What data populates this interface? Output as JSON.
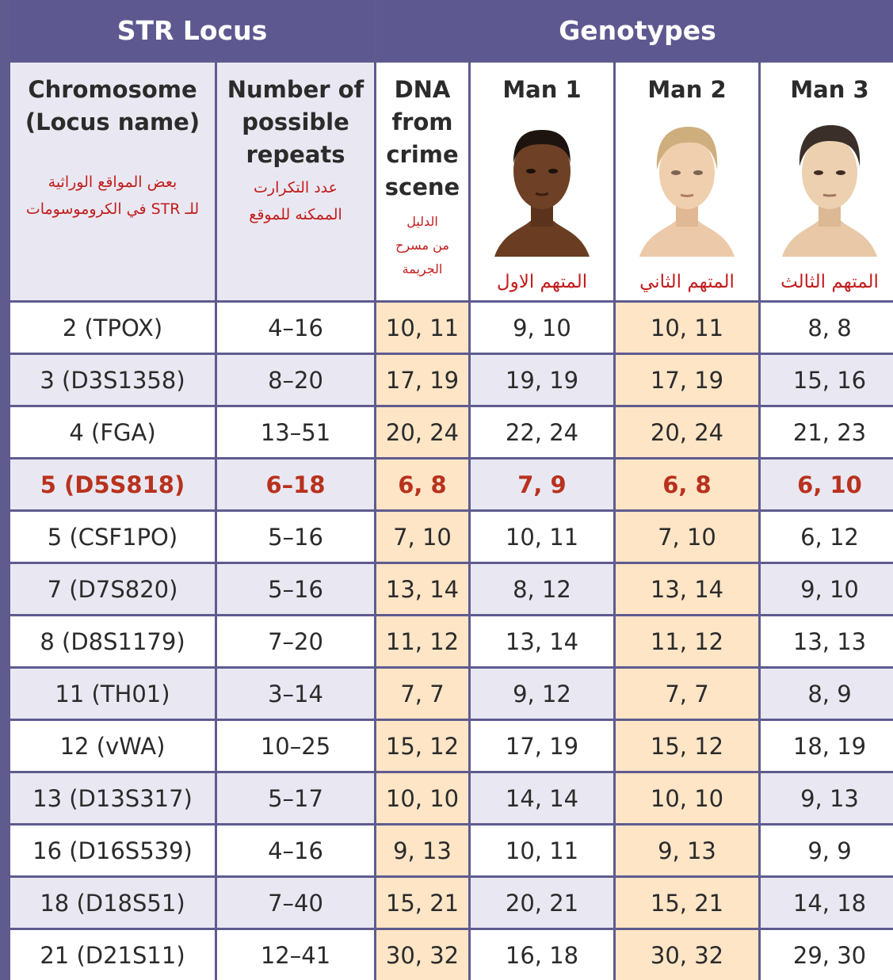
{
  "header": {
    "str_locus": "STR Locus",
    "genotypes": "Genotypes"
  },
  "columns": {
    "chromosome": {
      "title": "Chromosome\n(Locus name)",
      "arabic": "بعض المواقع الوراثية\nللـ STR في الكروموسومات"
    },
    "repeats": {
      "title": "Number of\npossible\nrepeats",
      "arabic": "عدد التكرارت\nالممكنه للموقع"
    },
    "crime_scene": {
      "title": "DNA\nfrom\ncrime\nscene",
      "arabic": "الدليل\nمن مسرح\nالجريمة"
    },
    "man1": {
      "title": "Man 1",
      "arabic": "المتهم الاول"
    },
    "man2": {
      "title": "Man 2",
      "arabic": "المتهم الثاني"
    },
    "man3": {
      "title": "Man 3",
      "arabic": "المتهم الثالث"
    }
  },
  "rows": [
    {
      "locus": "2 (TPOX)",
      "repeats": "4–16",
      "scene": "10, 11",
      "man1": "9, 10",
      "man2": "10, 11",
      "man3": "8, 8"
    },
    {
      "locus": "3 (D3S1358)",
      "repeats": "8–20",
      "scene": "17, 19",
      "man1": "19, 19",
      "man2": "17, 19",
      "man3": "15, 16"
    },
    {
      "locus": "4 (FGA)",
      "repeats": "13–51",
      "scene": "20, 24",
      "man1": "22, 24",
      "man2": "20, 24",
      "man3": "21, 23"
    },
    {
      "locus": "5 (D5S818)",
      "repeats": "6–18",
      "scene": "6, 8",
      "man1": "7, 9",
      "man2": "6, 8",
      "man3": "6, 10"
    },
    {
      "locus": "5 (CSF1PO)",
      "repeats": "5–16",
      "scene": "7, 10",
      "man1": "10, 11",
      "man2": "7, 10",
      "man3": "6, 12"
    },
    {
      "locus": "7 (D7S820)",
      "repeats": "5–16",
      "scene": "13, 14",
      "man1": "8, 12",
      "man2": "13, 14",
      "man3": "9, 10"
    },
    {
      "locus": "8 (D8S1179)",
      "repeats": "7–20",
      "scene": "11, 12",
      "man1": "13, 14",
      "man2": "11, 12",
      "man3": "13, 13"
    },
    {
      "locus": "11 (TH01)",
      "repeats": "3–14",
      "scene": "7, 7",
      "man1": "9, 12",
      "man2": "7, 7",
      "man3": "8, 9"
    },
    {
      "locus": "12 (vWA)",
      "repeats": "10–25",
      "scene": "15, 12",
      "man1": "17, 19",
      "man2": "15, 12",
      "man3": "18, 19"
    },
    {
      "locus": "13 (D13S317)",
      "repeats": "5–17",
      "scene": "10, 10",
      "man1": "14, 14",
      "man2": "10, 10",
      "man3": "9, 13"
    },
    {
      "locus": "16 (D16S539)",
      "repeats": "4–16",
      "scene": "9, 13",
      "man1": "10, 11",
      "man2": "9, 13",
      "man3": "9, 9"
    },
    {
      "locus": "18 (D18S51)",
      "repeats": "7–40",
      "scene": "15, 21",
      "man1": "20, 21",
      "man2": "15, 21",
      "man3": "14, 18"
    },
    {
      "locus": "21 (D21S11)",
      "repeats": "12–41",
      "scene": "30, 32",
      "man1": "16, 18",
      "man2": "30, 32",
      "man3": "29, 30"
    }
  ],
  "highlight_row_index": 3,
  "colors": {
    "header_band": "#5d5990",
    "row_alt": "#e9e8f2",
    "match_highlight": "#fde5c6",
    "highlight_text": "#b8321e",
    "arabic_text": "#c21c1c"
  }
}
